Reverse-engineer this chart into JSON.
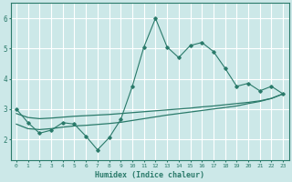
{
  "title": "",
  "xlabel": "Humidex (Indice chaleur)",
  "ylabel": "",
  "bg_color": "#cce8e8",
  "grid_color": "#ffffff",
  "line_color": "#2a7a6a",
  "xlim": [
    -0.5,
    23.5
  ],
  "ylim": [
    1.3,
    6.5
  ],
  "yticks": [
    2,
    3,
    4,
    5,
    6
  ],
  "xticks": [
    0,
    1,
    2,
    3,
    4,
    5,
    6,
    7,
    8,
    9,
    10,
    11,
    12,
    13,
    14,
    15,
    16,
    17,
    18,
    19,
    20,
    21,
    22,
    23
  ],
  "series1_x": [
    0,
    1,
    2,
    3,
    4,
    5,
    6,
    7,
    8,
    9,
    10,
    11,
    12,
    13,
    14,
    15,
    16,
    17,
    18,
    19,
    20,
    21,
    22,
    23
  ],
  "series1_y": [
    3.0,
    2.55,
    2.2,
    2.3,
    2.55,
    2.5,
    2.1,
    1.65,
    2.05,
    2.65,
    3.75,
    5.05,
    6.0,
    5.05,
    4.7,
    5.1,
    5.2,
    4.9,
    4.35,
    3.75,
    3.85,
    3.6,
    3.75,
    3.5
  ],
  "series2_x": [
    0,
    1,
    2,
    3,
    4,
    5,
    6,
    7,
    8,
    9,
    10,
    11,
    12,
    13,
    14,
    15,
    16,
    17,
    18,
    19,
    20,
    21,
    22,
    23
  ],
  "series2_y": [
    2.85,
    2.72,
    2.68,
    2.7,
    2.73,
    2.76,
    2.78,
    2.8,
    2.82,
    2.85,
    2.88,
    2.91,
    2.94,
    2.97,
    3.0,
    3.03,
    3.07,
    3.1,
    3.14,
    3.18,
    3.22,
    3.27,
    3.35,
    3.5
  ],
  "series3_x": [
    0,
    1,
    2,
    3,
    4,
    5,
    6,
    7,
    8,
    9,
    10,
    11,
    12,
    13,
    14,
    15,
    16,
    17,
    18,
    19,
    20,
    21,
    22,
    23
  ],
  "series3_y": [
    2.5,
    2.35,
    2.32,
    2.35,
    2.4,
    2.44,
    2.46,
    2.49,
    2.52,
    2.56,
    2.62,
    2.68,
    2.74,
    2.8,
    2.85,
    2.9,
    2.95,
    3.0,
    3.05,
    3.1,
    3.18,
    3.25,
    3.35,
    3.5
  ]
}
